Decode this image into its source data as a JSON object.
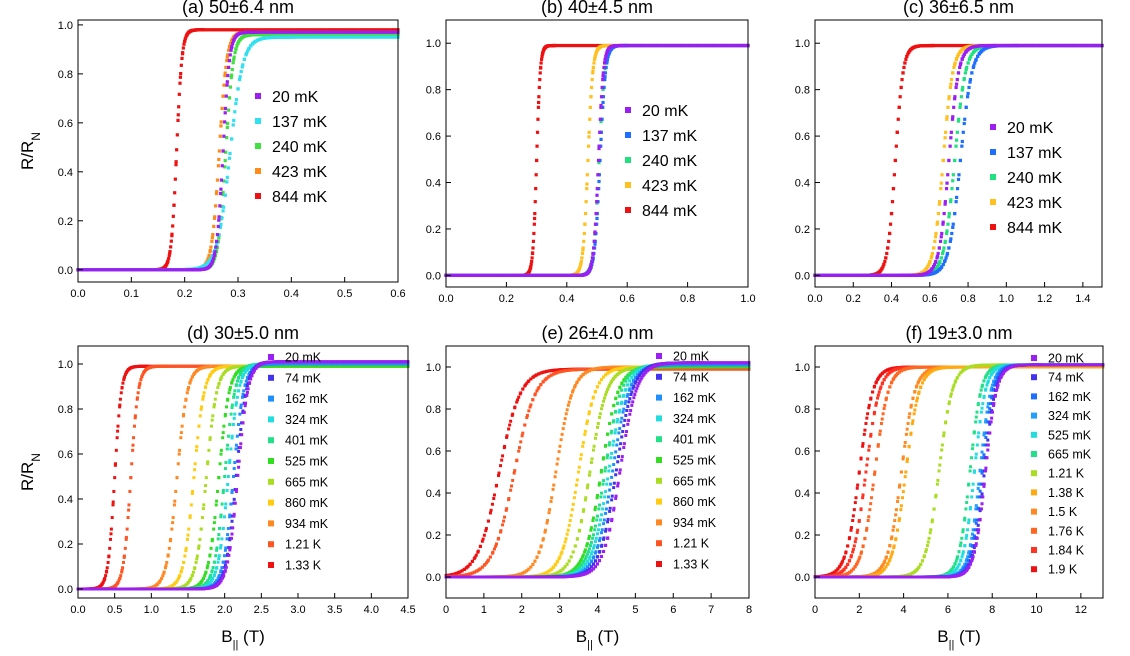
{
  "chart_data": [
    {
      "type": "scatter",
      "title": "(a) 50±6.4 nm",
      "ylabel": "R/R",
      "ylabel_sub": "N",
      "xlabel": "",
      "xlim": [
        0,
        0.6
      ],
      "ylim": [
        -0.05,
        1.02
      ],
      "xticks": [
        "0.0",
        "0.1",
        "0.2",
        "0.3",
        "0.4",
        "0.5",
        "0.6"
      ],
      "xtick_values": [
        0,
        0.1,
        0.2,
        0.3,
        0.4,
        0.5,
        0.6
      ],
      "yticks": [
        "0.0",
        "0.2",
        "0.4",
        "0.6",
        "0.8",
        "1.0"
      ],
      "ytick_values": [
        0,
        0.2,
        0.4,
        0.6,
        0.8,
        1.0
      ],
      "legend_position": "right",
      "series": [
        {
          "name": "20 mK",
          "color": "#9b1ff2",
          "bc": 0.272,
          "width": 0.006,
          "sat": 0.97
        },
        {
          "name": "137 mK",
          "color": "#30e0f0",
          "bc": 0.285,
          "width": 0.012,
          "sat": 0.95
        },
        {
          "name": "240 mK",
          "color": "#40e040",
          "bc": 0.277,
          "width": 0.007,
          "sat": 0.96
        },
        {
          "name": "423 mK",
          "color": "#ff8c1a",
          "bc": 0.265,
          "width": 0.007,
          "sat": 0.97
        },
        {
          "name": "844 mK",
          "color": "#ee1111",
          "bc": 0.185,
          "width": 0.005,
          "sat": 0.98
        }
      ]
    },
    {
      "type": "scatter",
      "title": "(b) 40±4.5 nm",
      "xlabel": "",
      "xlim": [
        0,
        1.0
      ],
      "ylim": [
        -0.05,
        1.1
      ],
      "xticks": [
        "0.0",
        "0.2",
        "0.4",
        "0.6",
        "0.8",
        "1.0"
      ],
      "xtick_values": [
        0,
        0.2,
        0.4,
        0.6,
        0.8,
        1.0
      ],
      "yticks": [
        "0.0",
        "0.2",
        "0.4",
        "0.6",
        "0.8",
        "1.0"
      ],
      "ytick_values": [
        0,
        0.2,
        0.4,
        0.6,
        0.8,
        1.0
      ],
      "legend_position": "right",
      "series": [
        {
          "name": "20 mK",
          "color": "#9b1ff2",
          "bc": 0.505,
          "width": 0.008,
          "sat": 0.99
        },
        {
          "name": "137 mK",
          "color": "#1f6fff",
          "bc": 0.51,
          "width": 0.009,
          "sat": 0.99
        },
        {
          "name": "240 mK",
          "color": "#20e080",
          "bc": 0.507,
          "width": 0.009,
          "sat": 0.99
        },
        {
          "name": "423 mK",
          "color": "#ffc020",
          "bc": 0.47,
          "width": 0.008,
          "sat": 0.99
        },
        {
          "name": "844 mK",
          "color": "#ee1111",
          "bc": 0.3,
          "width": 0.006,
          "sat": 0.99
        }
      ]
    },
    {
      "type": "scatter",
      "title": "(c) 36±6.5 nm",
      "xlabel": "",
      "xlim": [
        0,
        1.5
      ],
      "ylim": [
        -0.05,
        1.1
      ],
      "xticks": [
        "0.0",
        "0.2",
        "0.4",
        "0.6",
        "0.8",
        "1.0",
        "1.2",
        "1.4"
      ],
      "xtick_values": [
        0,
        0.2,
        0.4,
        0.6,
        0.8,
        1.0,
        1.2,
        1.4
      ],
      "yticks": [
        "0.0",
        "0.2",
        "0.4",
        "0.6",
        "0.8",
        "1.0"
      ],
      "ytick_values": [
        0,
        0.2,
        0.4,
        0.6,
        0.8,
        1.0
      ],
      "legend_position": "right",
      "series": [
        {
          "name": "20 mK",
          "color": "#9b1ff2",
          "bc": 0.7,
          "width": 0.025,
          "sat": 0.99
        },
        {
          "name": "137 mK",
          "color": "#1f6fff",
          "bc": 0.76,
          "width": 0.03,
          "sat": 0.99
        },
        {
          "name": "240 mK",
          "color": "#20e080",
          "bc": 0.73,
          "width": 0.028,
          "sat": 0.99
        },
        {
          "name": "423 mK",
          "color": "#ffc020",
          "bc": 0.67,
          "width": 0.025,
          "sat": 0.99
        },
        {
          "name": "844 mK",
          "color": "#ee1111",
          "bc": 0.42,
          "width": 0.02,
          "sat": 0.99
        }
      ]
    },
    {
      "type": "scatter",
      "title": "(d) 30±5.0 nm",
      "ylabel": "R/R",
      "ylabel_sub": "N",
      "xlabel": "B",
      "xlabel_sub": "||",
      "xlabel_unit": " (T)",
      "xlim": [
        0,
        4.5
      ],
      "ylim": [
        -0.04,
        1.08
      ],
      "xticks": [
        "0.0",
        "0.5",
        "1.0",
        "1.5",
        "2.0",
        "2.5",
        "3.0",
        "3.5",
        "4.0",
        "4.5"
      ],
      "xtick_values": [
        0,
        0.5,
        1.0,
        1.5,
        2.0,
        2.5,
        3.0,
        3.5,
        4.0,
        4.5
      ],
      "yticks": [
        "0.0",
        "0.2",
        "0.4",
        "0.6",
        "0.8",
        "1.0"
      ],
      "ytick_values": [
        0,
        0.2,
        0.4,
        0.6,
        0.8,
        1.0
      ],
      "legend_position": "right",
      "series": [
        {
          "name": "20 mK",
          "color": "#9b1ff2",
          "bc": 2.18,
          "width": 0.07,
          "sat": 1.01
        },
        {
          "name": "74 mK",
          "color": "#4433ee",
          "bc": 2.16,
          "width": 0.07,
          "sat": 1.01
        },
        {
          "name": "162 mK",
          "color": "#1f8fff",
          "bc": 2.12,
          "width": 0.07,
          "sat": 1.0
        },
        {
          "name": "324 mK",
          "color": "#22dddd",
          "bc": 2.05,
          "width": 0.07,
          "sat": 1.0
        },
        {
          "name": "401 mK",
          "color": "#22e088",
          "bc": 2.0,
          "width": 0.07,
          "sat": 1.0
        },
        {
          "name": "525 mK",
          "color": "#33dd22",
          "bc": 1.92,
          "width": 0.07,
          "sat": 0.99
        },
        {
          "name": "665 mK",
          "color": "#aadd22",
          "bc": 1.75,
          "width": 0.07,
          "sat": 0.99
        },
        {
          "name": "860 mK",
          "color": "#ffcc11",
          "bc": 1.58,
          "width": 0.07,
          "sat": 0.99
        },
        {
          "name": "934 mK",
          "color": "#ff8822",
          "bc": 1.35,
          "width": 0.07,
          "sat": 0.99
        },
        {
          "name": "1.21 K",
          "color": "#ff5522",
          "bc": 0.72,
          "width": 0.05,
          "sat": 0.99
        },
        {
          "name": "1.33 K",
          "color": "#ee1111",
          "bc": 0.5,
          "width": 0.045,
          "sat": 0.99
        }
      ]
    },
    {
      "type": "scatter",
      "title": "(e) 26±4.0 nm",
      "xlabel": "B",
      "xlabel_sub": "||",
      "xlabel_unit": " (T)",
      "xlim": [
        0,
        8
      ],
      "ylim": [
        -0.1,
        1.1
      ],
      "xticks": [
        "0",
        "1",
        "2",
        "3",
        "4",
        "5",
        "6",
        "7",
        "8"
      ],
      "xtick_values": [
        0,
        1,
        2,
        3,
        4,
        5,
        6,
        7,
        8
      ],
      "yticks": [
        "0.0",
        "0.2",
        "0.4",
        "0.6",
        "0.8",
        "1.0"
      ],
      "ytick_values": [
        0,
        0.2,
        0.4,
        0.6,
        0.8,
        1.0
      ],
      "legend_position": "right",
      "series": [
        {
          "name": "20 mK",
          "color": "#9b1ff2",
          "bc": 4.6,
          "width": 0.22,
          "sat": 1.02
        },
        {
          "name": "74 mK",
          "color": "#4433ee",
          "bc": 4.5,
          "width": 0.22,
          "sat": 1.02
        },
        {
          "name": "162 mK",
          "color": "#1f8fff",
          "bc": 4.4,
          "width": 0.22,
          "sat": 1.01
        },
        {
          "name": "324 mK",
          "color": "#22dddd",
          "bc": 4.3,
          "width": 0.22,
          "sat": 1.01
        },
        {
          "name": "401 mK",
          "color": "#22e088",
          "bc": 4.2,
          "width": 0.22,
          "sat": 1.01
        },
        {
          "name": "525 mK",
          "color": "#33dd22",
          "bc": 4.1,
          "width": 0.22,
          "sat": 1.0
        },
        {
          "name": "665 mK",
          "color": "#aadd22",
          "bc": 3.8,
          "width": 0.22,
          "sat": 1.0
        },
        {
          "name": "860 mK",
          "color": "#ffcc11",
          "bc": 3.5,
          "width": 0.22,
          "sat": 1.0
        },
        {
          "name": "934 mK",
          "color": "#ff8822",
          "bc": 2.9,
          "width": 0.22,
          "sat": 1.0
        },
        {
          "name": "1.21 K",
          "color": "#ff5522",
          "bc": 1.8,
          "width": 0.28,
          "sat": 0.99
        },
        {
          "name": "1.33 K",
          "color": "#ee1111",
          "bc": 1.4,
          "width": 0.28,
          "sat": 0.99
        }
      ]
    },
    {
      "type": "scatter",
      "title": "(f) 19±3.0 nm",
      "xlabel": "B",
      "xlabel_sub": "||",
      "xlabel_unit": " (T)",
      "xlim": [
        0,
        13
      ],
      "ylim": [
        -0.1,
        1.1
      ],
      "xticks": [
        "0",
        "2",
        "4",
        "6",
        "8",
        "10",
        "12"
      ],
      "xtick_values": [
        0,
        2,
        4,
        6,
        8,
        10,
        12
      ],
      "yticks": [
        "0.0",
        "0.2",
        "0.4",
        "0.6",
        "0.8",
        "1.0"
      ],
      "ytick_values": [
        0,
        0.2,
        0.4,
        0.6,
        0.8,
        1.0
      ],
      "legend_position": "right",
      "series": [
        {
          "name": "20 mK",
          "color": "#9b1ff2",
          "bc": 7.7,
          "width": 0.25,
          "sat": 1.01
        },
        {
          "name": "74 mK",
          "color": "#4433ee",
          "bc": 7.65,
          "width": 0.25,
          "sat": 1.01
        },
        {
          "name": "162 mK",
          "color": "#1f6fff",
          "bc": 7.55,
          "width": 0.25,
          "sat": 1.01
        },
        {
          "name": "324 mK",
          "color": "#1f9fff",
          "bc": 7.45,
          "width": 0.25,
          "sat": 1.01
        },
        {
          "name": "525 mK",
          "color": "#22dddd",
          "bc": 7.2,
          "width": 0.25,
          "sat": 1.01
        },
        {
          "name": "665 mK",
          "color": "#22e088",
          "bc": 7.0,
          "width": 0.25,
          "sat": 1.01
        },
        {
          "name": "1.21 K",
          "color": "#aadd22",
          "bc": 5.6,
          "width": 0.3,
          "sat": 1.01
        },
        {
          "name": "1.38 K",
          "color": "#ffaa11",
          "bc": 4.1,
          "width": 0.3,
          "sat": 1.0
        },
        {
          "name": "1.5 K",
          "color": "#ff8822",
          "bc": 3.9,
          "width": 0.3,
          "sat": 1.0
        },
        {
          "name": "1.76 K",
          "color": "#ff6622",
          "bc": 2.7,
          "width": 0.3,
          "sat": 1.0
        },
        {
          "name": "1.84 K",
          "color": "#ff3322",
          "bc": 2.3,
          "width": 0.3,
          "sat": 1.0
        },
        {
          "name": "1.9 K",
          "color": "#ee1111",
          "bc": 2.0,
          "width": 0.3,
          "sat": 1.0
        }
      ]
    }
  ]
}
